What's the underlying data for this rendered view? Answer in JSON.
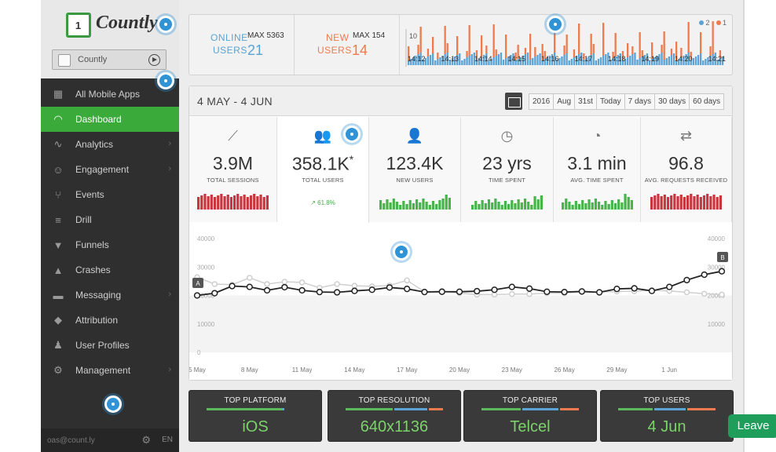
{
  "app": {
    "logo_text": "Countly",
    "logo_badge": "1",
    "selected_app": "Countly"
  },
  "sidebar": {
    "items": [
      {
        "label": "All Mobile Apps",
        "icon": "grid-icon",
        "chevron": false,
        "active": false
      },
      {
        "label": "Dashboard",
        "icon": "speedometer-icon",
        "chevron": false,
        "active": true
      },
      {
        "label": "Analytics",
        "icon": "pulse-icon",
        "chevron": true,
        "active": false
      },
      {
        "label": "Engagement",
        "icon": "smile-icon",
        "chevron": true,
        "active": false
      },
      {
        "label": "Events",
        "icon": "fork-icon",
        "chevron": false,
        "active": false
      },
      {
        "label": "Drill",
        "icon": "filter-lines-icon",
        "chevron": false,
        "active": false
      },
      {
        "label": "Funnels",
        "icon": "funnel-icon",
        "chevron": false,
        "active": false
      },
      {
        "label": "Crashes",
        "icon": "warning-icon",
        "chevron": false,
        "active": false
      },
      {
        "label": "Messaging",
        "icon": "chat-icon",
        "chevron": true,
        "active": false
      },
      {
        "label": "Attribution",
        "icon": "tag-icon",
        "chevron": false,
        "active": false
      },
      {
        "label": "User Profiles",
        "icon": "users-icon",
        "chevron": false,
        "active": false
      },
      {
        "label": "Management",
        "icon": "gear-icon",
        "chevron": true,
        "active": false
      }
    ],
    "footer_email": "oas@count.ly",
    "footer_lang": "EN"
  },
  "live": {
    "online_label_1": "ONLINE",
    "online_label_2": "USERS",
    "online_value": "21",
    "online_max": "MAX 5363",
    "new_label_1": "NEW",
    "new_label_2": "USERS",
    "new_value": "14",
    "new_max": "MAX 154",
    "legend": [
      "2",
      "1"
    ],
    "times": [
      "14:12",
      "14:13",
      "14:14",
      "14:15",
      "14:16",
      "14:17",
      "14:18",
      "14:19",
      "14:20",
      "14:21"
    ],
    "ytick": "10",
    "colors": {
      "online": "#1f8ccf",
      "new": "#f06a38"
    }
  },
  "period": {
    "title": "4 MAY - 4 JUN",
    "buttons": [
      "2016",
      "Aug",
      "31st",
      "Today",
      "7 days",
      "30 days",
      "60 days"
    ]
  },
  "stats": [
    {
      "icon": "trend-up-icon",
      "value": "3.9M",
      "label": "TOTAL SESSIONS",
      "spark": "red",
      "selected": false,
      "trend": ""
    },
    {
      "icon": "users-icon",
      "value": "358.1K",
      "asterisk": "*",
      "label": "TOTAL USERS",
      "spark": "",
      "selected": true,
      "trend": "61.8%"
    },
    {
      "icon": "user-plus-icon",
      "value": "123.4K",
      "label": "NEW USERS",
      "spark": "green",
      "selected": false,
      "trend": ""
    },
    {
      "icon": "clock-icon",
      "value": "23 yrs",
      "label": "TIME SPENT",
      "spark": "green",
      "selected": false,
      "trend": ""
    },
    {
      "icon": "pie-clock-icon",
      "value": "3.1 min",
      "label": "AVG. TIME SPENT",
      "spark": "green",
      "selected": false,
      "trend": ""
    },
    {
      "icon": "arrows-icon",
      "value": "96.8",
      "label": "AVG. REQUESTS RECEIVED",
      "spark": "red",
      "selected": false,
      "trend": ""
    }
  ],
  "chart_data": {
    "type": "line",
    "x": [
      "5 May",
      "6 May",
      "7 May",
      "8 May",
      "9 May",
      "10 May",
      "11 May",
      "12 May",
      "13 May",
      "14 May",
      "15 May",
      "16 May",
      "17 May",
      "18 May",
      "19 May",
      "20 May",
      "21 May",
      "22 May",
      "23 May",
      "24 May",
      "25 May",
      "26 May",
      "27 May",
      "28 May",
      "29 May",
      "30 May",
      "31 May",
      "1 Jun",
      "2 Jun",
      "3 Jun",
      "4 Jun"
    ],
    "xticks": [
      "5 May",
      "8 May",
      "11 May",
      "14 May",
      "17 May",
      "20 May",
      "23 May",
      "26 May",
      "29 May",
      "1 Jun"
    ],
    "yticks_left": [
      "40000",
      "30000",
      "20000",
      "10000",
      "0"
    ],
    "yticks_right": [
      "40000",
      "30000",
      "20000",
      "10000"
    ],
    "ylim": [
      0,
      40000
    ],
    "markers": [
      "A",
      "B"
    ],
    "series": [
      {
        "values": [
          20000,
          20800,
          23300,
          23000,
          21800,
          22900,
          21800,
          21200,
          21100,
          21600,
          22000,
          22800,
          22300,
          21200,
          21300,
          21300,
          21500,
          22000,
          23000,
          22400,
          21300,
          21200,
          21400,
          21100,
          22300,
          22500,
          21600,
          23000,
          25400,
          27300,
          28500
        ]
      },
      {
        "values": [
          26400,
          24000,
          23800,
          26200,
          24000,
          24800,
          24600,
          22700,
          24000,
          23400,
          23200,
          23500,
          25300,
          21300,
          21600,
          20800,
          20300,
          20300,
          20500,
          20500,
          20800,
          20800,
          21300,
          21200,
          21400,
          21500,
          21800,
          21600,
          21100,
          20600,
          20300
        ]
      }
    ]
  },
  "top_cards": [
    {
      "title": "TOP PLATFORM",
      "value": "iOS"
    },
    {
      "title": "TOP RESOLUTION",
      "value": "640x1136"
    },
    {
      "title": "TOP CARRIER",
      "value": "Telcel"
    },
    {
      "title": "TOP USERS",
      "value": "4 Jun"
    }
  ],
  "leave_label": "Leave"
}
